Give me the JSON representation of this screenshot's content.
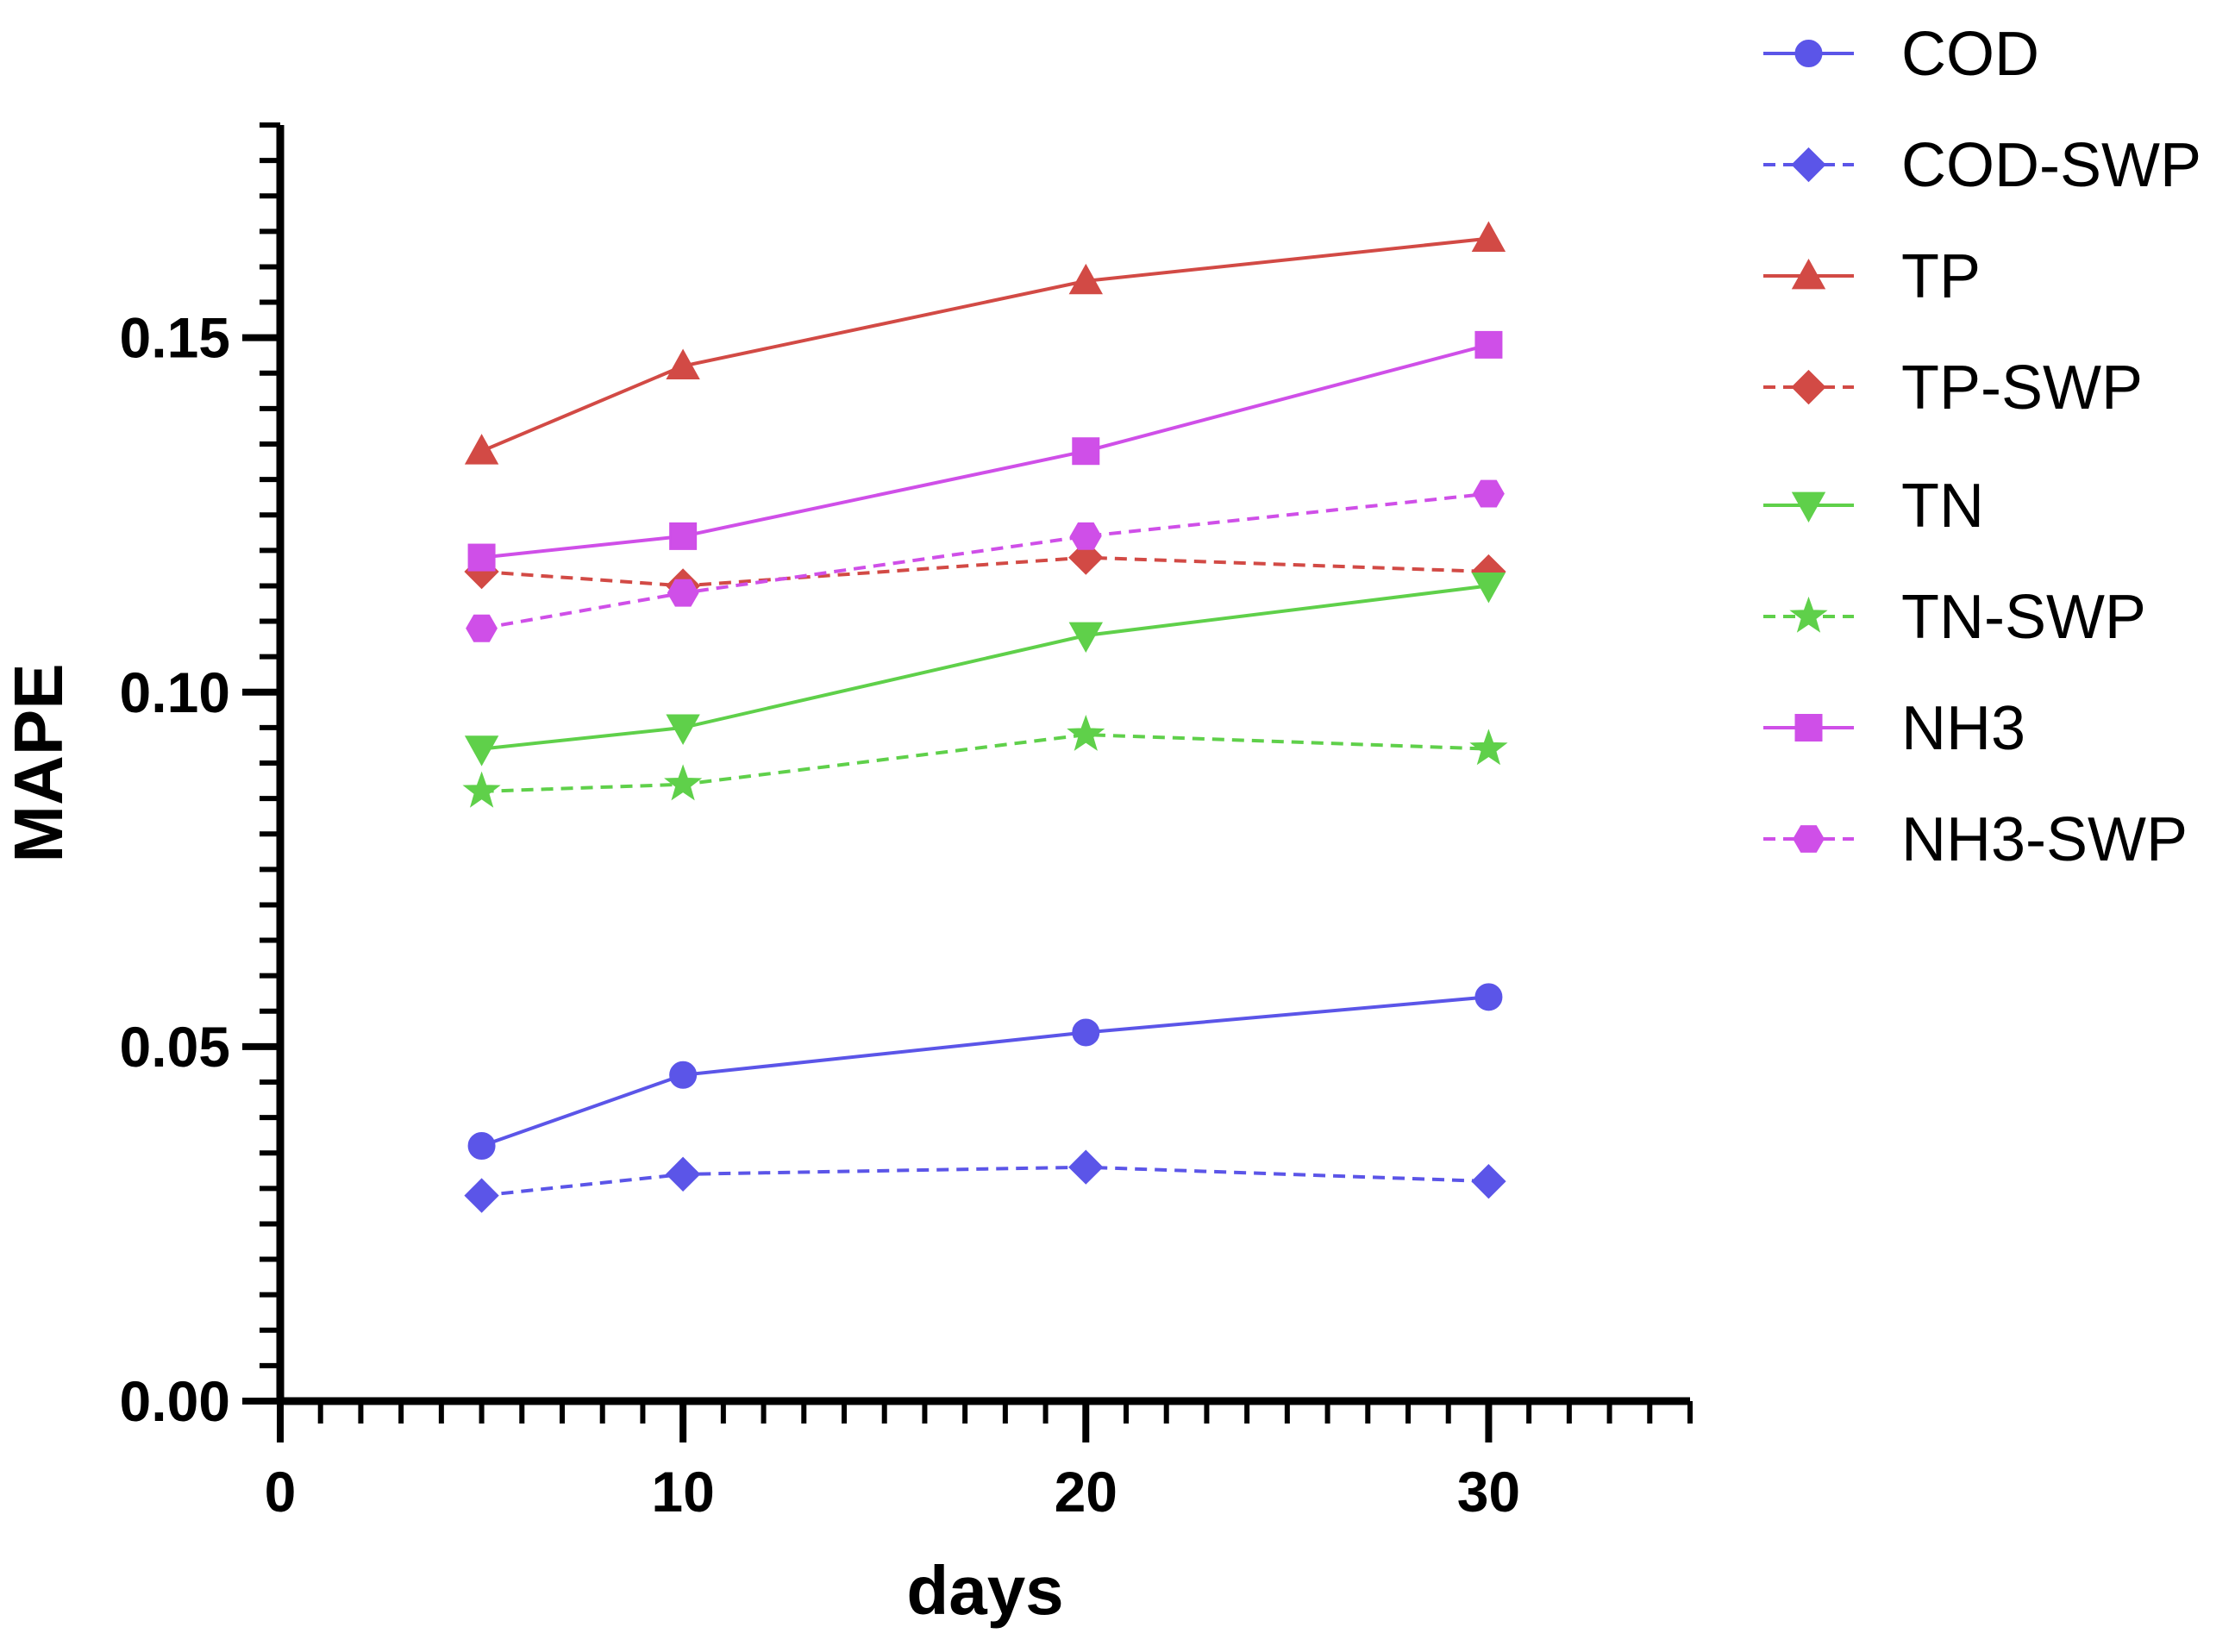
{
  "chart_data": {
    "type": "line",
    "title": "",
    "xlabel": "days",
    "ylabel": "MAPE",
    "xlim": [
      0,
      35
    ],
    "ylim": [
      0,
      0.18
    ],
    "x_ticks": [
      0,
      10,
      20,
      30
    ],
    "x_tick_labels": [
      "0",
      "10",
      "20",
      "30"
    ],
    "x_minor_step": 1,
    "y_ticks": [
      0,
      0.05,
      0.1,
      0.15
    ],
    "y_tick_labels": [
      "0.00",
      "0.05",
      "0.10",
      "0.15"
    ],
    "y_minor_step": 0.005,
    "grid": false,
    "legend_position": "right",
    "x": [
      5,
      10,
      20,
      30
    ],
    "series": [
      {
        "name": "COD",
        "color": "#5b55e8",
        "dashed": false,
        "marker": "circle",
        "values": [
          0.036,
          0.046,
          0.052,
          0.057
        ]
      },
      {
        "name": "COD-SWP",
        "color": "#5b55e8",
        "dashed": true,
        "marker": "diamond",
        "values": [
          0.029,
          0.032,
          0.033,
          0.031
        ]
      },
      {
        "name": "TP",
        "color": "#d24a45",
        "dashed": false,
        "marker": "triangle",
        "values": [
          0.134,
          0.146,
          0.158,
          0.164
        ]
      },
      {
        "name": "TP-SWP",
        "color": "#d24a45",
        "dashed": true,
        "marker": "diamond",
        "values": [
          0.117,
          0.115,
          0.119,
          0.117
        ]
      },
      {
        "name": "TN",
        "color": "#5fd04a",
        "dashed": false,
        "marker": "triangle-down",
        "values": [
          0.092,
          0.095,
          0.108,
          0.115
        ]
      },
      {
        "name": "TN-SWP",
        "color": "#5fd04a",
        "dashed": true,
        "marker": "star",
        "values": [
          0.086,
          0.087,
          0.094,
          0.092
        ]
      },
      {
        "name": "NH3",
        "color": "#cf4fe8",
        "dashed": false,
        "marker": "square",
        "values": [
          0.119,
          0.122,
          0.134,
          0.149
        ]
      },
      {
        "name": "NH3-SWP",
        "color": "#cf4fe8",
        "dashed": true,
        "marker": "hexagon",
        "values": [
          0.109,
          0.114,
          0.122,
          0.128
        ]
      }
    ]
  }
}
